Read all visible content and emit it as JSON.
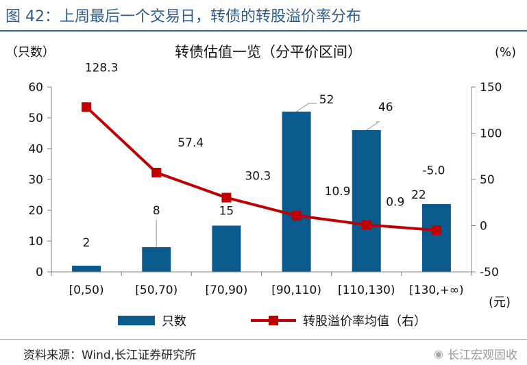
{
  "figure": {
    "title": "图 42：上周最后一个交易日，转债的转股溢价率分布",
    "source": "资料来源：Wind,长江证券研究所",
    "watermark": "长江宏观固收",
    "watermark_icon": "wechat-icon"
  },
  "chart_data": {
    "type": "bar+line",
    "title": "转债估值一览（分平价区间）",
    "categories": [
      "[0,50)",
      "[50,70)",
      "[70,90)",
      "[90,110)",
      "[110,130)",
      "[130,+∞)"
    ],
    "x_unit": "(元)",
    "y_left": {
      "unit": "（只数）",
      "min": 0,
      "max": 60,
      "ticks": [
        "0",
        "10",
        "20",
        "30",
        "40",
        "50",
        "60"
      ]
    },
    "y_right": {
      "unit": "(%)",
      "min": -50,
      "max": 150,
      "ticks": [
        "-50",
        "0",
        "50",
        "100",
        "150"
      ]
    },
    "series": [
      {
        "name": "只数",
        "type": "bar",
        "axis": "left",
        "color": "#0b5a8e",
        "values": [
          2,
          8,
          15,
          52,
          46,
          22
        ],
        "labels": [
          "2",
          "8",
          "15",
          "52",
          "46",
          "22"
        ]
      },
      {
        "name": "转股溢价率均值（右）",
        "type": "line",
        "axis": "right",
        "color": "#c00000",
        "values": [
          128.3,
          57.4,
          30.3,
          10.9,
          0.9,
          -5.0
        ],
        "labels": [
          "128.3",
          "57.4",
          "30.3",
          "10.9",
          "0.9",
          "-5.0"
        ]
      }
    ],
    "grid": false,
    "legend_position": "bottom"
  }
}
